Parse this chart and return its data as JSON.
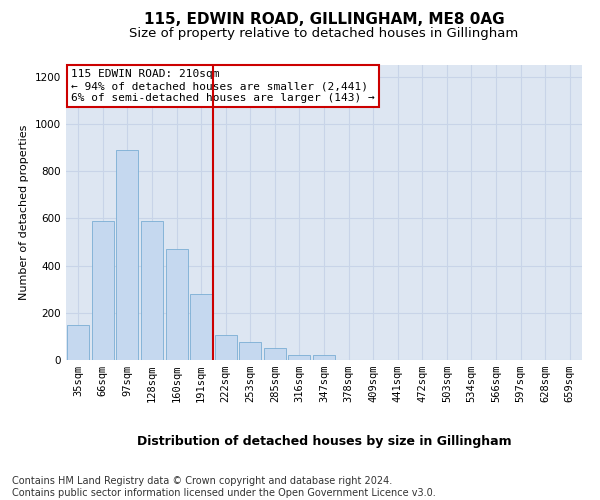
{
  "title": "115, EDWIN ROAD, GILLINGHAM, ME8 0AG",
  "subtitle": "Size of property relative to detached houses in Gillingham",
  "xlabel": "Distribution of detached houses by size in Gillingham",
  "ylabel": "Number of detached properties",
  "categories": [
    "35sqm",
    "66sqm",
    "97sqm",
    "128sqm",
    "160sqm",
    "191sqm",
    "222sqm",
    "253sqm",
    "285sqm",
    "316sqm",
    "347sqm",
    "378sqm",
    "409sqm",
    "441sqm",
    "472sqm",
    "503sqm",
    "534sqm",
    "566sqm",
    "597sqm",
    "628sqm",
    "659sqm"
  ],
  "values": [
    150,
    590,
    890,
    590,
    470,
    280,
    105,
    75,
    50,
    20,
    20,
    0,
    0,
    0,
    0,
    0,
    0,
    0,
    0,
    0,
    0
  ],
  "bar_color": "#c5d8ef",
  "bar_edgecolor": "#7aadd4",
  "vline_x_index": 6,
  "vline_color": "#cc0000",
  "annotation_text": "115 EDWIN ROAD: 210sqm\n← 94% of detached houses are smaller (2,441)\n6% of semi-detached houses are larger (143) →",
  "annotation_box_edgecolor": "#cc0000",
  "annotation_box_facecolor": "#ffffff",
  "ylim": [
    0,
    1250
  ],
  "yticks": [
    0,
    200,
    400,
    600,
    800,
    1000,
    1200
  ],
  "grid_color": "#c8d4e8",
  "plot_bg_color": "#dde6f2",
  "footer": "Contains HM Land Registry data © Crown copyright and database right 2024.\nContains public sector information licensed under the Open Government Licence v3.0.",
  "title_fontsize": 11,
  "subtitle_fontsize": 9.5,
  "xlabel_fontsize": 9,
  "ylabel_fontsize": 8,
  "tick_fontsize": 7.5,
  "footer_fontsize": 7
}
